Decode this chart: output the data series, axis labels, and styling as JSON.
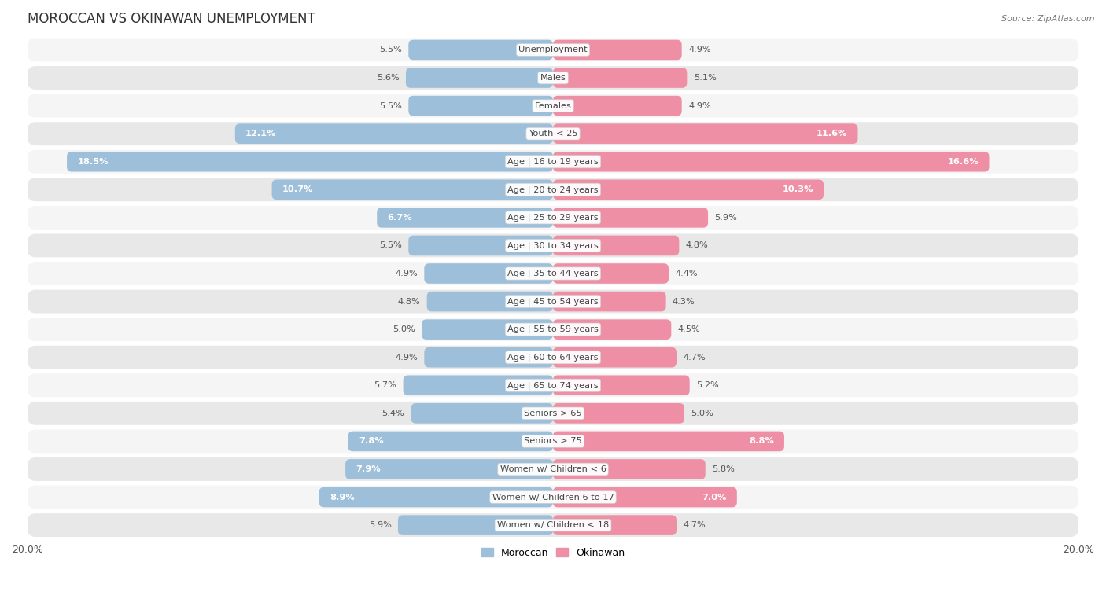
{
  "title": "MOROCCAN VS OKINAWAN UNEMPLOYMENT",
  "source": "Source: ZipAtlas.com",
  "categories": [
    "Unemployment",
    "Males",
    "Females",
    "Youth < 25",
    "Age | 16 to 19 years",
    "Age | 20 to 24 years",
    "Age | 25 to 29 years",
    "Age | 30 to 34 years",
    "Age | 35 to 44 years",
    "Age | 45 to 54 years",
    "Age | 55 to 59 years",
    "Age | 60 to 64 years",
    "Age | 65 to 74 years",
    "Seniors > 65",
    "Seniors > 75",
    "Women w/ Children < 6",
    "Women w/ Children 6 to 17",
    "Women w/ Children < 18"
  ],
  "moroccan": [
    5.5,
    5.6,
    5.5,
    12.1,
    18.5,
    10.7,
    6.7,
    5.5,
    4.9,
    4.8,
    5.0,
    4.9,
    5.7,
    5.4,
    7.8,
    7.9,
    8.9,
    5.9
  ],
  "okinawan": [
    4.9,
    5.1,
    4.9,
    11.6,
    16.6,
    10.3,
    5.9,
    4.8,
    4.4,
    4.3,
    4.5,
    4.7,
    5.2,
    5.0,
    8.8,
    5.8,
    7.0,
    4.7
  ],
  "moroccan_color": "#9dbfda",
  "okinawan_color": "#ee8fa5",
  "background_color": "#ffffff",
  "row_color_light": "#f5f5f5",
  "row_color_dark": "#e8e8e8",
  "xlim": 20.0,
  "legend_moroccan": "Moroccan",
  "legend_okinawan": "Okinawan",
  "bar_height": 0.72
}
